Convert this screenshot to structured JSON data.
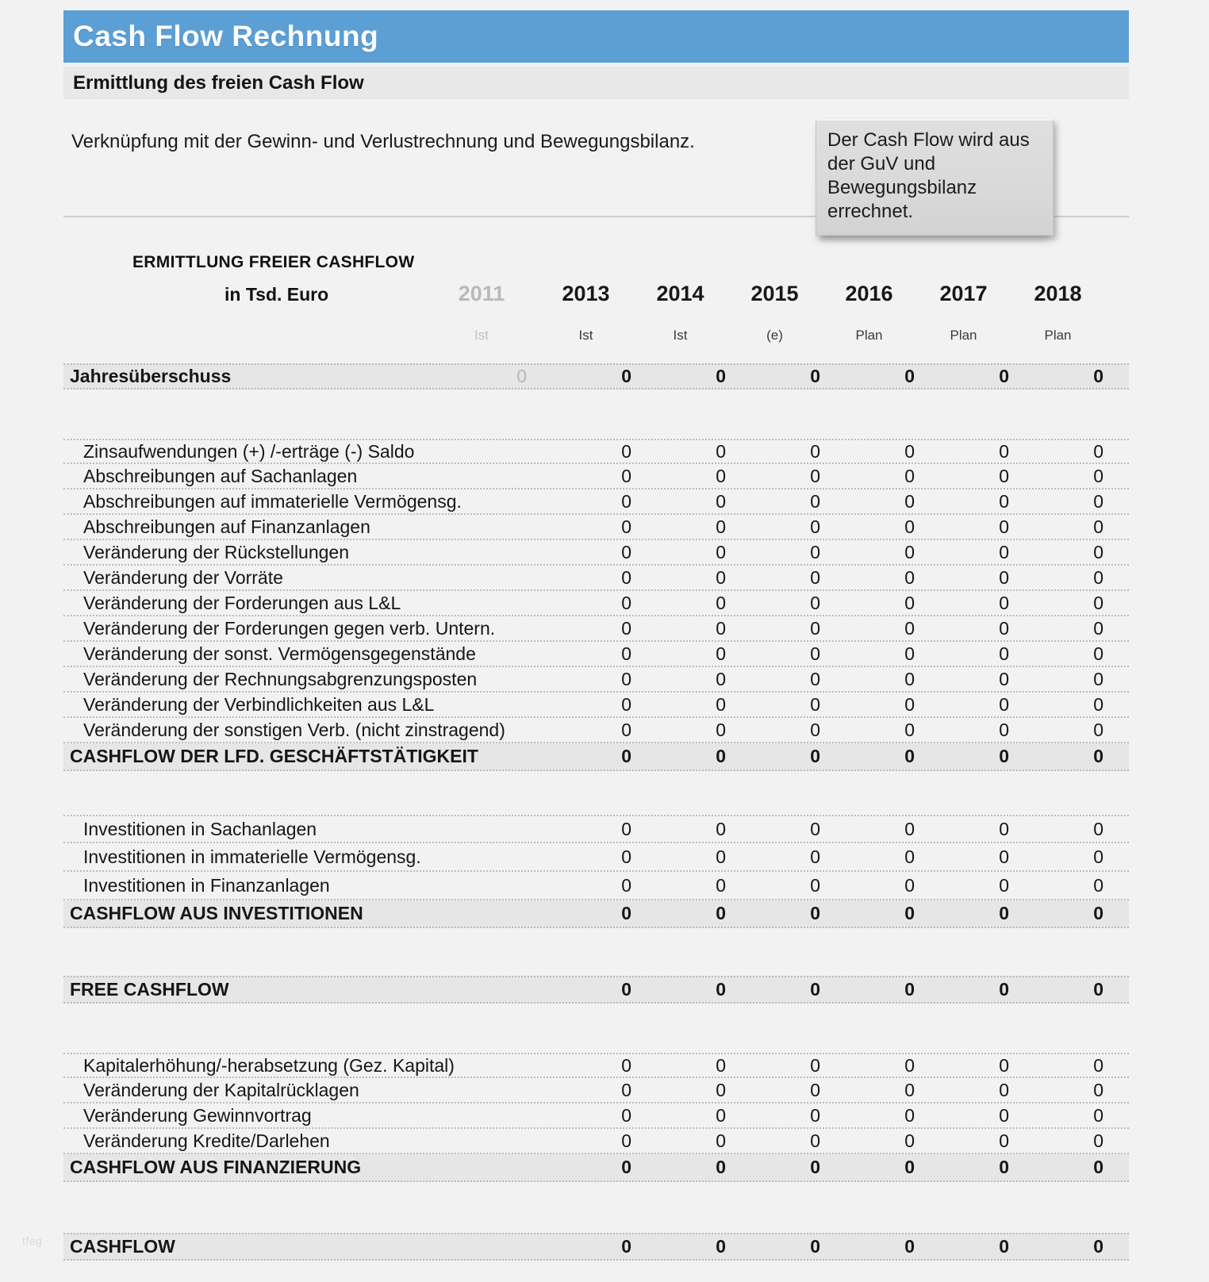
{
  "header": {
    "title": "Cash Flow Rechnung",
    "subtitle": "Ermittlung des freien Cash Flow"
  },
  "intro": {
    "text": "Verknüpfung mit der Gewinn- und Verlustrechnung und Bewegungsbilanz.",
    "note": "Der Cash Flow wird aus der GuV und Bewegungsbilanz errechnet."
  },
  "table": {
    "title": "ERMITTLUNG FREIER CASHFLOW",
    "unit_label": "in Tsd. Euro",
    "columns": [
      {
        "year": "2011",
        "status": "Ist",
        "muted": true
      },
      {
        "year": "2013",
        "status": "Ist",
        "muted": false
      },
      {
        "year": "2014",
        "status": "Ist",
        "muted": false
      },
      {
        "year": "2015",
        "status": "(e)",
        "muted": false
      },
      {
        "year": "2016",
        "status": "Plan",
        "muted": false
      },
      {
        "year": "2017",
        "status": "Plan",
        "muted": false
      },
      {
        "year": "2018",
        "status": "Plan",
        "muted": false
      }
    ],
    "blocks": [
      {
        "rows": [
          {
            "kind": "opening",
            "label": "Jahresüberschuss",
            "values": [
              "0",
              "0",
              "0",
              "0",
              "0",
              "0",
              "0"
            ]
          }
        ]
      },
      {
        "gap": 62
      },
      {
        "rows": [
          {
            "kind": "item",
            "label": "Zinsaufwendungen (+) /-erträge (-) Saldo",
            "values": [
              "",
              "0",
              "0",
              "0",
              "0",
              "0",
              "0"
            ]
          },
          {
            "kind": "item",
            "label": "Abschreibungen auf Sachanlagen",
            "values": [
              "",
              "0",
              "0",
              "0",
              "0",
              "0",
              "0"
            ]
          },
          {
            "kind": "item",
            "label": "Abschreibungen auf immaterielle Vermögensg.",
            "values": [
              "",
              "0",
              "0",
              "0",
              "0",
              "0",
              "0"
            ]
          },
          {
            "kind": "item",
            "label": "Abschreibungen auf Finanzanlagen",
            "values": [
              "",
              "0",
              "0",
              "0",
              "0",
              "0",
              "0"
            ]
          },
          {
            "kind": "item",
            "label": "Veränderung der Rückstellungen",
            "values": [
              "",
              "0",
              "0",
              "0",
              "0",
              "0",
              "0"
            ]
          },
          {
            "kind": "item",
            "label": "Veränderung der Vorräte",
            "values": [
              "",
              "0",
              "0",
              "0",
              "0",
              "0",
              "0"
            ]
          },
          {
            "kind": "item",
            "label": "Veränderung der Forderungen aus L&L",
            "values": [
              "",
              "0",
              "0",
              "0",
              "0",
              "0",
              "0"
            ]
          },
          {
            "kind": "item",
            "label": "Veränderung der Forderungen gegen verb. Untern.",
            "values": [
              "",
              "0",
              "0",
              "0",
              "0",
              "0",
              "0"
            ]
          },
          {
            "kind": "item",
            "label": "Veränderung der sonst. Vermögensgegenstände",
            "values": [
              "",
              "0",
              "0",
              "0",
              "0",
              "0",
              "0"
            ]
          },
          {
            "kind": "item",
            "label": "Veränderung der Rechnungsabgrenzungsposten",
            "values": [
              "",
              "0",
              "0",
              "0",
              "0",
              "0",
              "0"
            ]
          },
          {
            "kind": "item",
            "label": "Veränderung der Verbindlichkeiten aus L&L",
            "values": [
              "",
              "0",
              "0",
              "0",
              "0",
              "0",
              "0"
            ]
          },
          {
            "kind": "item",
            "label": "Veränderung der sonstigen Verb. (nicht zinstragend)",
            "values": [
              "",
              "0",
              "0",
              "0",
              "0",
              "0",
              "0"
            ]
          },
          {
            "kind": "total",
            "label": "CASHFLOW DER LFD. GESCHÄFTSTÄTIGKEIT",
            "values": [
              "",
              "0",
              "0",
              "0",
              "0",
              "0",
              "0"
            ]
          }
        ]
      },
      {
        "gap": 55
      },
      {
        "rows": [
          {
            "kind": "item tall",
            "label": "Investitionen in Sachanlagen",
            "values": [
              "",
              "0",
              "0",
              "0",
              "0",
              "0",
              "0"
            ]
          },
          {
            "kind": "item tall",
            "label": "Investitionen in immaterielle Vermögensg.",
            "values": [
              "",
              "0",
              "0",
              "0",
              "0",
              "0",
              "0"
            ]
          },
          {
            "kind": "item tall",
            "label": "Investitionen in Finanzanlagen",
            "values": [
              "",
              "0",
              "0",
              "0",
              "0",
              "0",
              "0"
            ]
          },
          {
            "kind": "total",
            "label": "CASHFLOW AUS INVESTITIONEN",
            "values": [
              "",
              "0",
              "0",
              "0",
              "0",
              "0",
              "0"
            ]
          }
        ]
      },
      {
        "gap": 60
      },
      {
        "rows": [
          {
            "kind": "total",
            "label": "FREE CASHFLOW",
            "values": [
              "",
              "0",
              "0",
              "0",
              "0",
              "0",
              "0"
            ]
          }
        ]
      },
      {
        "gap": 62
      },
      {
        "rows": [
          {
            "kind": "item",
            "label": "Kapitalerhöhung/-herabsetzung (Gez. Kapital)",
            "values": [
              "",
              "0",
              "0",
              "0",
              "0",
              "0",
              "0"
            ]
          },
          {
            "kind": "item",
            "label": "Veränderung der Kapitalrücklagen",
            "values": [
              "",
              "0",
              "0",
              "0",
              "0",
              "0",
              "0"
            ]
          },
          {
            "kind": "item",
            "label": "Veränderung Gewinnvortrag",
            "values": [
              "",
              "0",
              "0",
              "0",
              "0",
              "0",
              "0"
            ]
          },
          {
            "kind": "item",
            "label": "Veränderung Kredite/Darlehen",
            "values": [
              "",
              "0",
              "0",
              "0",
              "0",
              "0",
              "0"
            ]
          },
          {
            "kind": "total",
            "label": "CASHFLOW AUS FINANZIERUNG",
            "values": [
              "",
              "0",
              "0",
              "0",
              "0",
              "0",
              "0"
            ]
          }
        ]
      },
      {
        "gap": 64
      },
      {
        "rows": [
          {
            "kind": "total",
            "label": "CASHFLOW",
            "values": [
              "",
              "0",
              "0",
              "0",
              "0",
              "0",
              "0"
            ]
          }
        ]
      }
    ]
  },
  "watermark": "tfeg"
}
